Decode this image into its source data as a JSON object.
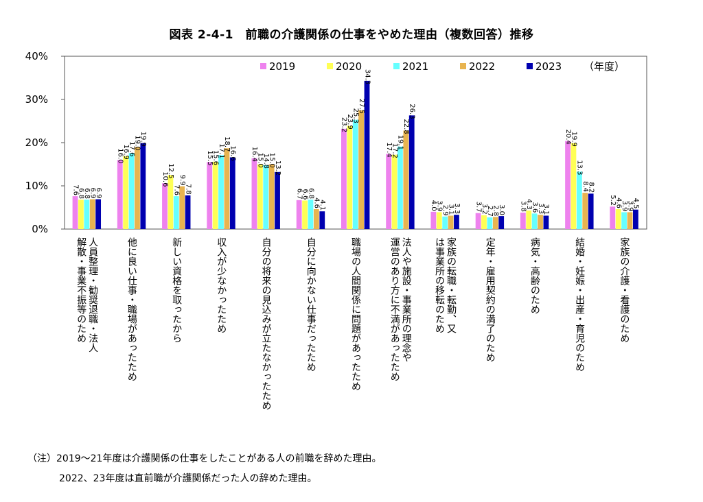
{
  "title": "図表 2-4-1　前職の介護関係の仕事をやめた理由（複数回答）推移",
  "notes": [
    "（注）2019～21年度は介護関係の仕事をしたことがある人の前職を辞めた理由。",
    "2022、23年度は直前職が介護関係だった人の辞めた理由。"
  ],
  "chart_data": {
    "type": "bar",
    "title": "図表 2-4-1　前職の介護関係の仕事をやめた理由（複数回答）推移",
    "ylim": [
      0,
      40
    ],
    "yticks": [
      "0%",
      "10%",
      "20%",
      "30%",
      "40%"
    ],
    "grid": false,
    "legend_placement": "top",
    "legend_unit": "（年度）",
    "categories": [
      [
        "人員整理・勧奨退職・法人",
        "解散・事業不振等のため"
      ],
      [
        "他に良い仕事・職場があったため"
      ],
      [
        "新しい資格を取ったから"
      ],
      [
        "収入が少なかったため"
      ],
      [
        "自分の将来の見込みが立たなかったため"
      ],
      [
        "自分に向かない仕事だったため"
      ],
      [
        "職場の人間関係に問題があったため"
      ],
      [
        "法人や施設・事業所の理念や",
        "運営のあり方に不満があったため"
      ],
      [
        "家族の転職・転勤、又",
        "は事業所の移転のため"
      ],
      [
        "定年・雇用契約の満了のため"
      ],
      [
        "病気・高齢のため"
      ],
      [
        "結婚・妊娠・出産・育児のため"
      ],
      [
        "家族の介護・看護のため"
      ]
    ],
    "series": [
      {
        "name": "2019",
        "color": "#ee82ee",
        "values": [
          7.6,
          16.0,
          10.6,
          15.5,
          16.4,
          6.7,
          23.2,
          17.4,
          4.0,
          3.7,
          3.8,
          20.4,
          5.2
        ]
      },
      {
        "name": "2020",
        "color": "#ffff55",
        "values": [
          6.8,
          16.9,
          12.5,
          15.6,
          15.0,
          6.6,
          23.9,
          17.2,
          3.9,
          3.2,
          4.3,
          19.9,
          4.6
        ]
      },
      {
        "name": "2021",
        "color": "#66ffff",
        "values": [
          6.8,
          17.6,
          7.6,
          17.1,
          14.8,
          6.8,
          25.3,
          19.1,
          2.9,
          2.7,
          3.6,
          13.3,
          3.9
        ]
      },
      {
        "name": "2022",
        "color": "#e8b450",
        "values": [
          6.9,
          19.0,
          9.9,
          18.7,
          15.0,
          4.6,
          27.5,
          22.8,
          3.1,
          2.8,
          3.3,
          8.4,
          3.9
        ]
      },
      {
        "name": "2023",
        "color": "#0000b0",
        "values": [
          6.9,
          19.9,
          7.8,
          16.6,
          13.2,
          4.1,
          34.3,
          26.3,
          3.3,
          3.0,
          3.1,
          8.2,
          4.5
        ]
      }
    ]
  }
}
